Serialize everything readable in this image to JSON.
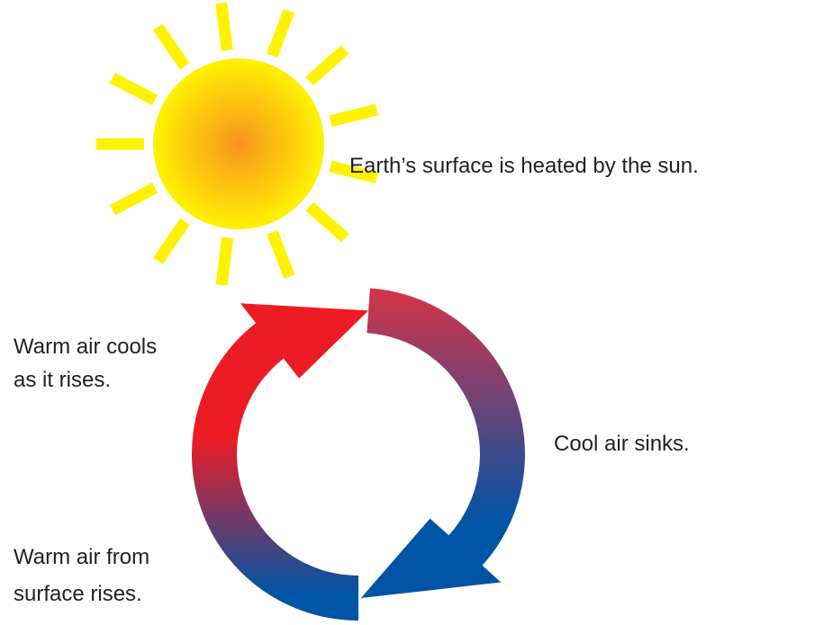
{
  "labels": {
    "sun": "Earth’s surface is heated by the sun.",
    "cools": [
      "Warm air cools",
      "as it rises."
    ],
    "sinks": "Cool air sinks.",
    "rises": [
      "Warm air from",
      "surface rises."
    ]
  }
}
